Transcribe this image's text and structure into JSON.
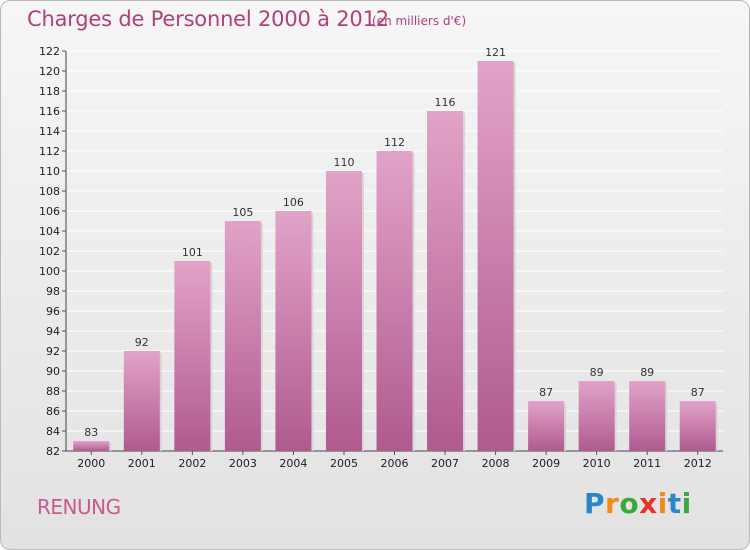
{
  "title": "Charges de Personnel 2000 à 2012",
  "subtitle": "(en milliers d'€)",
  "commune": "RENUNG",
  "brand": {
    "letters": [
      "P",
      "r",
      "o",
      "x",
      "i",
      "t",
      "i"
    ],
    "colors": [
      "#2a86c8",
      "#f08a1c",
      "#3aa83a",
      "#e8332a",
      "#f08a1c",
      "#2a86c8",
      "#3aa83a"
    ]
  },
  "colors": {
    "bar_top": "#e2a3c8",
    "bar_bottom": "#b05a90",
    "text_accent": "#b0407a"
  },
  "chart_data": {
    "type": "bar",
    "categories": [
      "2000",
      "2001",
      "2002",
      "2003",
      "2004",
      "2005",
      "2006",
      "2007",
      "2008",
      "2009",
      "2010",
      "2011",
      "2012"
    ],
    "values": [
      83,
      92,
      101,
      105,
      106,
      110,
      112,
      116,
      121,
      87,
      89,
      89,
      87
    ],
    "data_labels": [
      "83",
      "92",
      "101",
      "105",
      "106",
      "110",
      "112",
      "116",
      "121",
      "87",
      "89",
      "89",
      "87"
    ],
    "title": "Charges de Personnel 2000 à 2012",
    "subtitle": "(en milliers d'€)",
    "xlabel": "",
    "ylabel": "",
    "ylim": [
      82,
      122
    ],
    "yticks": [
      "82",
      "84",
      "86",
      "88",
      "90",
      "92",
      "94",
      "96",
      "98",
      "100",
      "102",
      "104",
      "106",
      "108",
      "110",
      "112",
      "114",
      "116",
      "118",
      "120",
      "122"
    ],
    "grid": true,
    "legend": "none"
  }
}
